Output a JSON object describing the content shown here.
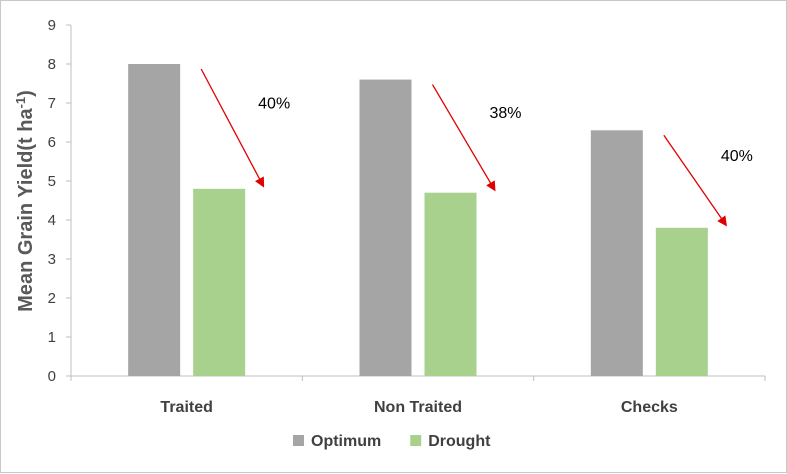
{
  "chart_data": {
    "type": "bar",
    "categories": [
      "Traited",
      "Non Traited",
      "Checks"
    ],
    "series": [
      {
        "name": "Optimum",
        "values": [
          8.0,
          7.6,
          6.3
        ],
        "color": "#a5a5a5"
      },
      {
        "name": "Drought",
        "values": [
          4.8,
          4.7,
          3.8
        ],
        "color": "#a9d18e"
      }
    ],
    "ylabel": "Mean Grain Yield(t ha",
    "ylabel_sup": "-1",
    "ylabel_close": ")",
    "ylim": [
      0,
      9
    ],
    "yticks": [
      0,
      1,
      2,
      3,
      4,
      5,
      6,
      7,
      8,
      9
    ],
    "grid": false,
    "legend_position": "bottom",
    "annotations": [
      {
        "category": "Traited",
        "text": "40%"
      },
      {
        "category": "Non Traited",
        "text": "38%"
      },
      {
        "category": "Checks",
        "text": "40%"
      }
    ],
    "arrow_color": "#e00000"
  }
}
